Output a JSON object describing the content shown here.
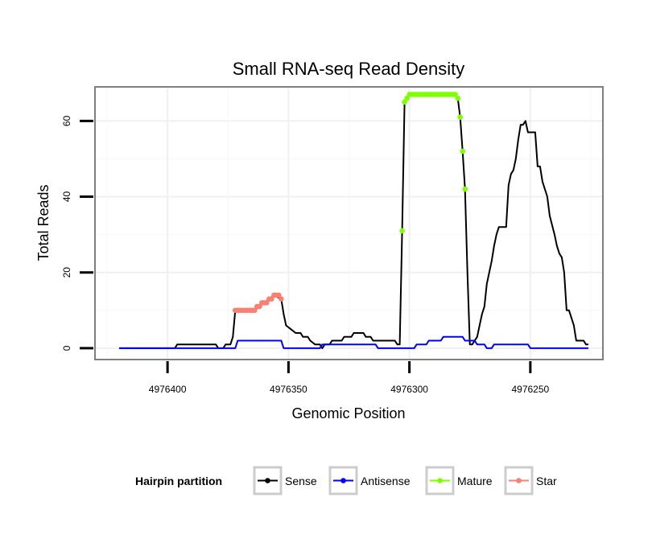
{
  "chart_data": {
    "type": "line",
    "title": "Small RNA-seq Read Density",
    "xlabel": "Genomic Position",
    "ylabel": "Total Reads",
    "xlim": [
      4976430,
      4976220
    ],
    "ylim": [
      -3,
      69
    ],
    "x_reversed": true,
    "x_ticks": [
      4976400,
      4976350,
      4976300,
      4976250
    ],
    "x_tick_labels": [
      "4976400",
      "4976350",
      "4976300",
      "4976250"
    ],
    "y_ticks": [
      0,
      20,
      40,
      60
    ],
    "y_tick_labels": [
      "0",
      "20",
      "40",
      "60"
    ],
    "grid": true,
    "legend": {
      "title": "Hairpin partition",
      "position": "bottom",
      "entries": [
        {
          "name": "Sense",
          "color": "#000000"
        },
        {
          "name": "Antisense",
          "color": "#0000ff"
        },
        {
          "name": "Mature",
          "color": "#7fff00"
        },
        {
          "name": "Star",
          "color": "#fa8072"
        }
      ]
    },
    "series": [
      {
        "name": "Sense",
        "color": "#000000",
        "marker": false,
        "points": [
          [
            4976420,
            0
          ],
          [
            4976397,
            0
          ],
          [
            4976396,
            1
          ],
          [
            4976380,
            1
          ],
          [
            4976379,
            0
          ],
          [
            4976377,
            0
          ],
          [
            4976376,
            1
          ],
          [
            4976374,
            1
          ],
          [
            4976373,
            3
          ],
          [
            4976372,
            10
          ],
          [
            4976364,
            10
          ],
          [
            4976362,
            11
          ],
          [
            4976360,
            12
          ],
          [
            4976358,
            13
          ],
          [
            4976356,
            14
          ],
          [
            4976353,
            13
          ],
          [
            4976352,
            9
          ],
          [
            4976351,
            6
          ],
          [
            4976349,
            5
          ],
          [
            4976347,
            4
          ],
          [
            4976345,
            4
          ],
          [
            4976344,
            3
          ],
          [
            4976342,
            3
          ],
          [
            4976341,
            2
          ],
          [
            4976339,
            1
          ],
          [
            4976337,
            1
          ],
          [
            4976336,
            0
          ],
          [
            4976335,
            1
          ],
          [
            4976333,
            1
          ],
          [
            4976332,
            2
          ],
          [
            4976328,
            2
          ],
          [
            4976327,
            3
          ],
          [
            4976324,
            3
          ],
          [
            4976323,
            4
          ],
          [
            4976319,
            4
          ],
          [
            4976318,
            3
          ],
          [
            4976316,
            3
          ],
          [
            4976315,
            2
          ],
          [
            4976306,
            2
          ],
          [
            4976305,
            1
          ],
          [
            4976304,
            1
          ],
          [
            4976303,
            31
          ],
          [
            4976302,
            65
          ],
          [
            4976301,
            66
          ],
          [
            4976300,
            67
          ],
          [
            4976281,
            67
          ],
          [
            4976280,
            66
          ],
          [
            4976279,
            61
          ],
          [
            4976278,
            52
          ],
          [
            4976277,
            42
          ],
          [
            4976276,
            20
          ],
          [
            4976275,
            1
          ],
          [
            4976274,
            1
          ],
          [
            4976272,
            3
          ],
          [
            4976271,
            6
          ],
          [
            4976270,
            9
          ],
          [
            4976269,
            11
          ],
          [
            4976268,
            17
          ],
          [
            4976266,
            23
          ],
          [
            4976265,
            27
          ],
          [
            4976264,
            30
          ],
          [
            4976263,
            32
          ],
          [
            4976260,
            32
          ],
          [
            4976259,
            43
          ],
          [
            4976258,
            46
          ],
          [
            4976257,
            47
          ],
          [
            4976256,
            50
          ],
          [
            4976255,
            55
          ],
          [
            4976254,
            59
          ],
          [
            4976253,
            59
          ],
          [
            4976252,
            60
          ],
          [
            4976251,
            57
          ],
          [
            4976248,
            57
          ],
          [
            4976247,
            48
          ],
          [
            4976246,
            48
          ],
          [
            4976245,
            44
          ],
          [
            4976243,
            40
          ],
          [
            4976242,
            35
          ],
          [
            4976240,
            30
          ],
          [
            4976239,
            27
          ],
          [
            4976238,
            25
          ],
          [
            4976237,
            24
          ],
          [
            4976236,
            20
          ],
          [
            4976235,
            10
          ],
          [
            4976234,
            10
          ],
          [
            4976232,
            6
          ],
          [
            4976231,
            2
          ],
          [
            4976228,
            2
          ],
          [
            4976227,
            1
          ],
          [
            4976226,
            1
          ]
        ]
      },
      {
        "name": "Antisense",
        "color": "#0000ff",
        "marker": false,
        "points": [
          [
            4976420,
            0
          ],
          [
            4976376,
            0
          ],
          [
            4976375,
            0
          ],
          [
            4976372,
            0
          ],
          [
            4976371,
            2
          ],
          [
            4976353,
            2
          ],
          [
            4976352,
            0
          ],
          [
            4976337,
            0
          ],
          [
            4976336,
            1
          ],
          [
            4976314,
            1
          ],
          [
            4976313,
            0
          ],
          [
            4976298,
            0
          ],
          [
            4976297,
            1
          ],
          [
            4976293,
            1
          ],
          [
            4976292,
            2
          ],
          [
            4976287,
            2
          ],
          [
            4976286,
            3
          ],
          [
            4976278,
            3
          ],
          [
            4976277,
            2
          ],
          [
            4976273,
            2
          ],
          [
            4976272,
            1
          ],
          [
            4976269,
            1
          ],
          [
            4976268,
            0
          ],
          [
            4976266,
            0
          ],
          [
            4976265,
            1
          ],
          [
            4976251,
            1
          ],
          [
            4976250,
            0
          ],
          [
            4976226,
            0
          ]
        ]
      },
      {
        "name": "Mature",
        "color": "#7fff00",
        "marker": true,
        "points": [
          [
            4976303,
            31
          ],
          [
            4976302,
            65
          ],
          [
            4976301,
            66
          ],
          [
            4976300,
            67
          ],
          [
            4976299,
            67
          ],
          [
            4976298,
            67
          ],
          [
            4976297,
            67
          ],
          [
            4976296,
            67
          ],
          [
            4976295,
            67
          ],
          [
            4976294,
            67
          ],
          [
            4976293,
            67
          ],
          [
            4976292,
            67
          ],
          [
            4976291,
            67
          ],
          [
            4976290,
            67
          ],
          [
            4976289,
            67
          ],
          [
            4976288,
            67
          ],
          [
            4976287,
            67
          ],
          [
            4976286,
            67
          ],
          [
            4976285,
            67
          ],
          [
            4976284,
            67
          ],
          [
            4976283,
            67
          ],
          [
            4976282,
            67
          ],
          [
            4976281,
            67
          ],
          [
            4976280,
            66
          ],
          [
            4976279,
            61
          ],
          [
            4976278,
            52
          ],
          [
            4976277,
            42
          ]
        ]
      },
      {
        "name": "Star",
        "color": "#fa8072",
        "marker": true,
        "points": [
          [
            4976372,
            10
          ],
          [
            4976371,
            10
          ],
          [
            4976370,
            10
          ],
          [
            4976369,
            10
          ],
          [
            4976368,
            10
          ],
          [
            4976367,
            10
          ],
          [
            4976366,
            10
          ],
          [
            4976365,
            10
          ],
          [
            4976364,
            10
          ],
          [
            4976363,
            11
          ],
          [
            4976362,
            11
          ],
          [
            4976361,
            12
          ],
          [
            4976360,
            12
          ],
          [
            4976359,
            12
          ],
          [
            4976358,
            13
          ],
          [
            4976357,
            13
          ],
          [
            4976356,
            14
          ],
          [
            4976355,
            14
          ],
          [
            4976354,
            14
          ],
          [
            4976353,
            13
          ]
        ]
      }
    ]
  }
}
